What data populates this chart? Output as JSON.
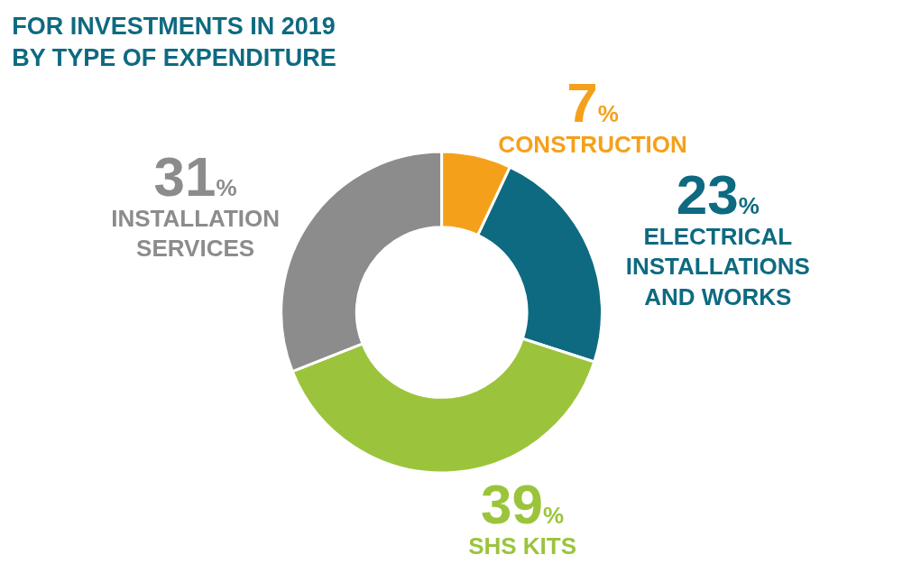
{
  "chart_data": {
    "type": "donut",
    "title": "FOR INVESTMENTS IN 2019\nBY TYPE OF EXPENDITURE",
    "categories": [
      "CONSTRUCTION",
      "ELECTRICAL\nINSTALLATIONS\nAND WORKS",
      "SHS KITS",
      "INSTALLATION\nSERVICES"
    ],
    "values": [
      7,
      23,
      39,
      31
    ],
    "colors": [
      "#f5a01a",
      "#0e6a80",
      "#9bc43c",
      "#8c8c8c"
    ],
    "value_labels": [
      "7%",
      "23%",
      "39%",
      "31%"
    ],
    "legend": false
  }
}
